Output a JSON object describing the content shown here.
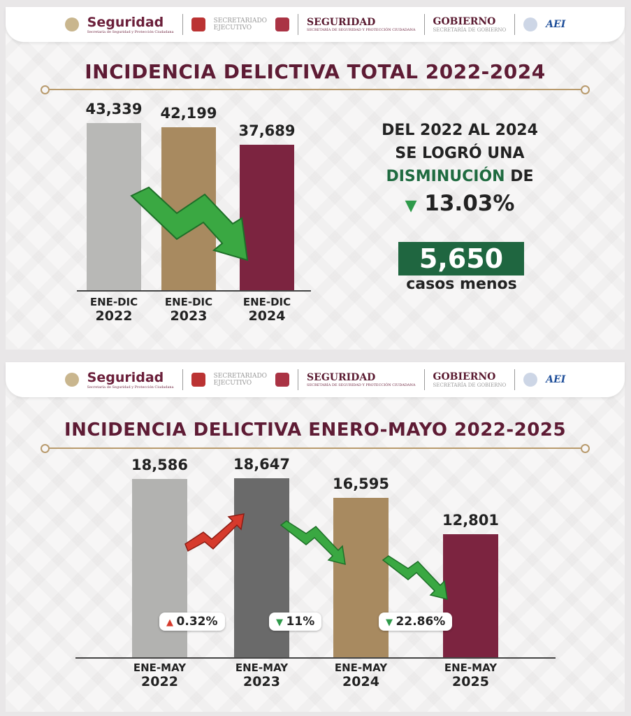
{
  "header": {
    "brand": "Seguridad",
    "brand_sub": "Secretaría de Seguridad y Protección Ciudadana",
    "se1": "SECRETARIADO",
    "se2": "EJECUTIVO",
    "seg": "SEGURIDAD",
    "seg_sub": "SECRETARÍA DE SEGURIDAD Y PROTECCIÓN CIUDADANA",
    "gob": "GOBIERNO",
    "gob_sub": "SECRETARÍA DE GOBIERNO",
    "aei": "AEI"
  },
  "summary": {
    "line1": "DEL 2022 AL 2024",
    "line2": "SE LOGRÓ UNA",
    "highlight": "DISMINUCIÓN",
    "de": "DE",
    "percent": "13.03%",
    "cases": "5,650",
    "cases_label": "casos menos"
  },
  "chart_data": [
    {
      "type": "bar",
      "title": "INCIDENCIA DELICTIVA TOTAL 2022-2024",
      "categories": [
        [
          "ENE-DIC",
          "2022"
        ],
        [
          "ENE-DIC",
          "2023"
        ],
        [
          "ENE-DIC",
          "2024"
        ]
      ],
      "values": [
        43339,
        42199,
        37689
      ],
      "labels": [
        "43,339",
        "42,199",
        "37,689"
      ],
      "colors": [
        "#b8b8b6",
        "#a88a60",
        "#7c2440"
      ],
      "ylim": [
        0,
        43339
      ]
    },
    {
      "type": "bar",
      "title": "INCIDENCIA DELICTIVA ENERO-MAYO 2022-2025",
      "categories": [
        [
          "ENE-MAY",
          "2022"
        ],
        [
          "ENE-MAY",
          "2023"
        ],
        [
          "ENE-MAY",
          "2024"
        ],
        [
          "ENE-MAY",
          "2025"
        ]
      ],
      "values": [
        18586,
        18647,
        16595,
        12801
      ],
      "labels": [
        "18,586",
        "18,647",
        "16,595",
        "12,801"
      ],
      "colors": [
        "#b2b2b0",
        "#6a6a6a",
        "#a88a60",
        "#7c2440"
      ],
      "changes": [
        {
          "text": "0.32%",
          "dir": "up"
        },
        {
          "text": "11%",
          "dir": "down"
        },
        {
          "text": "22.86%",
          "dir": "down"
        }
      ],
      "ylim": [
        0,
        18647
      ]
    }
  ]
}
